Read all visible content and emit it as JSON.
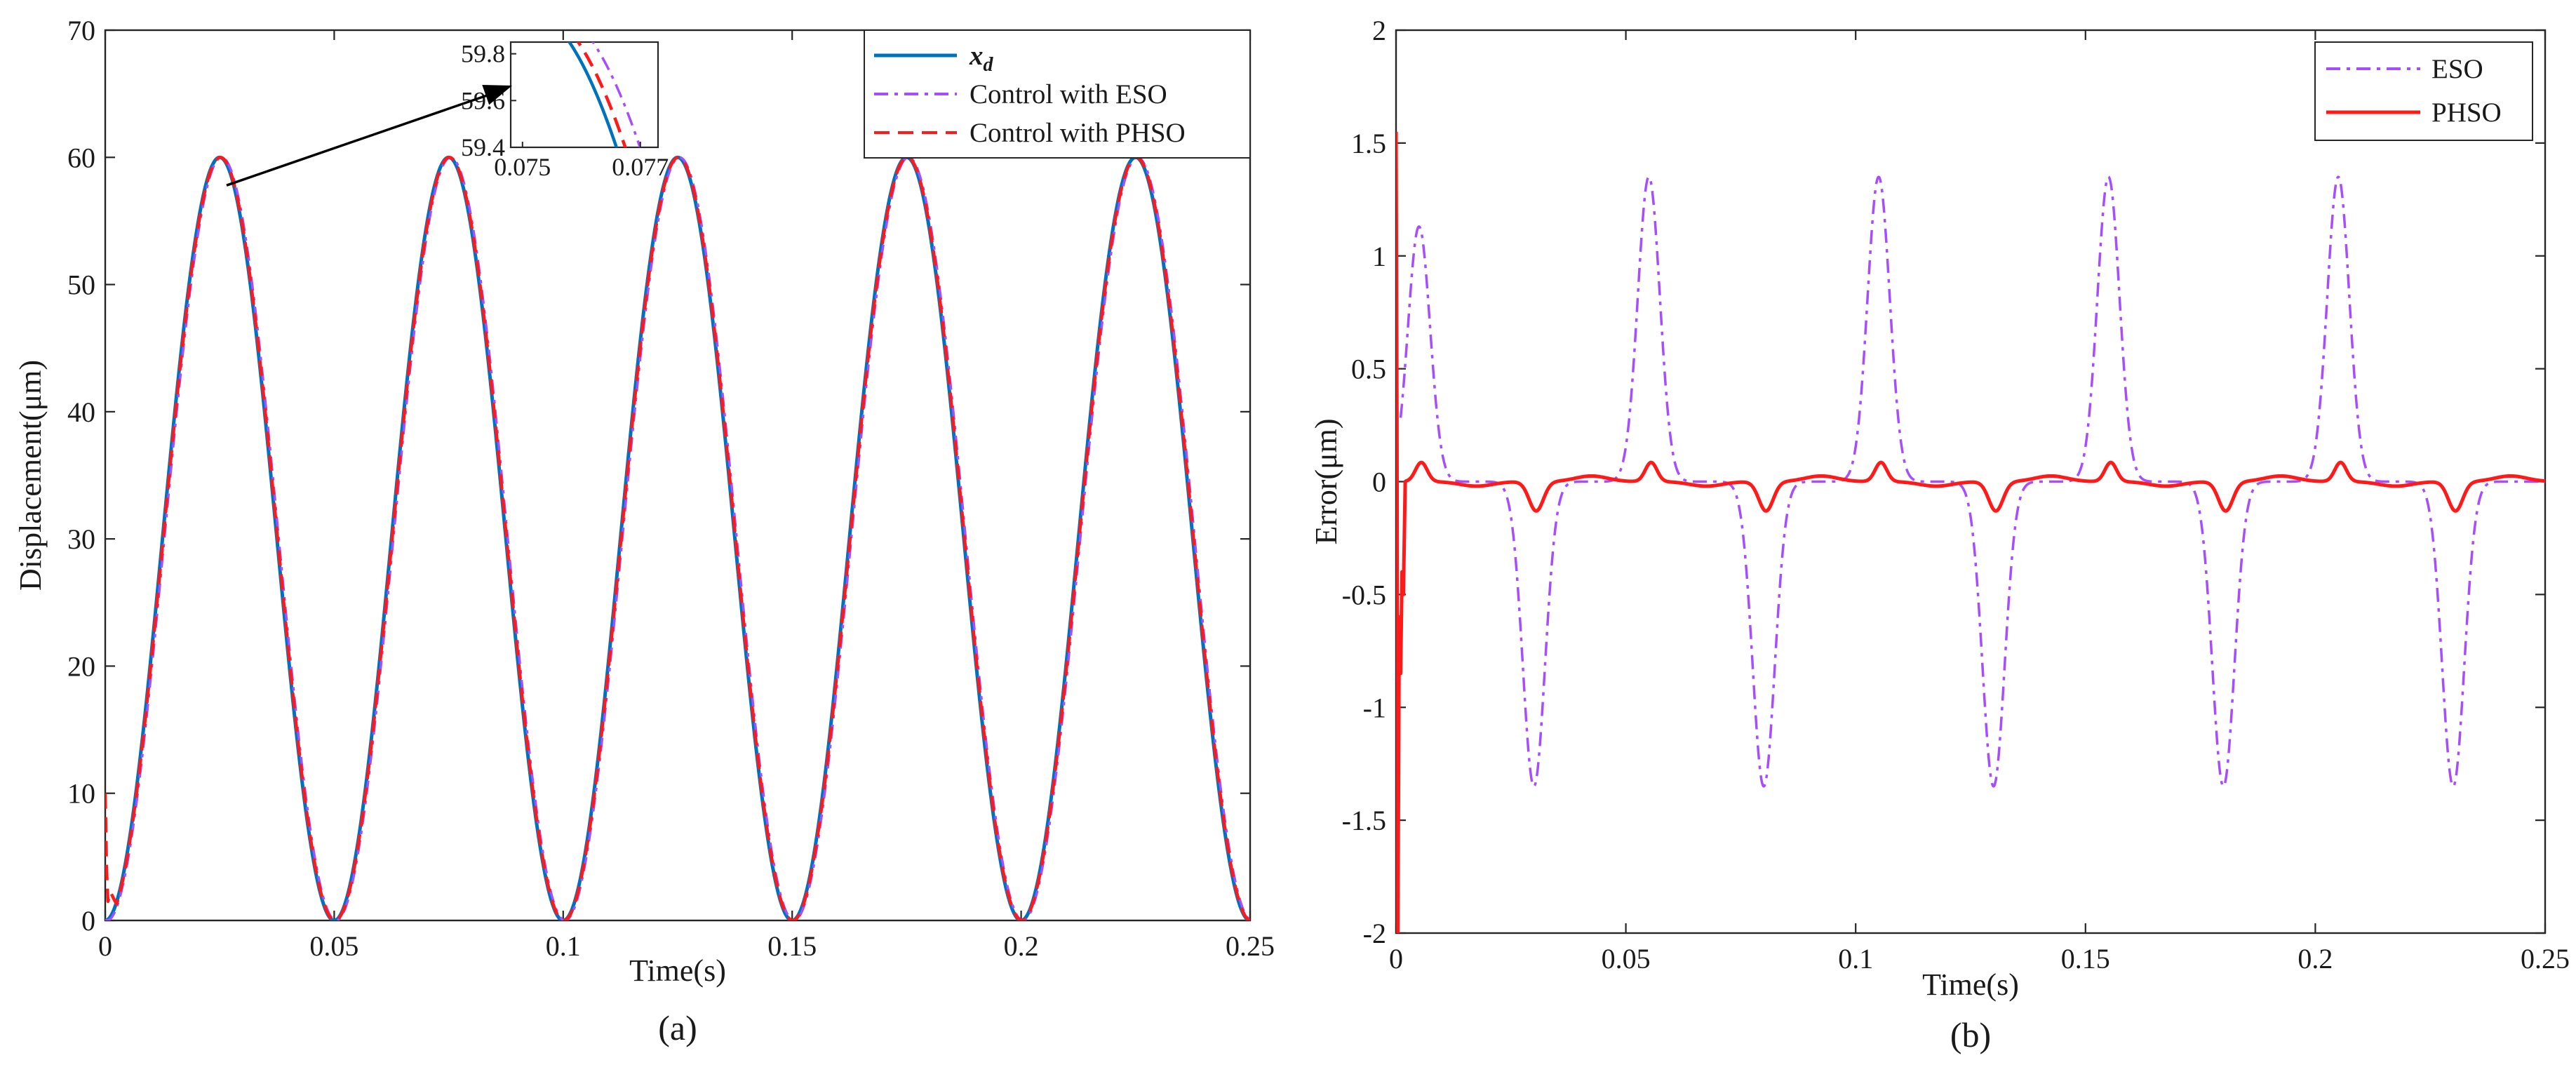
{
  "colors": {
    "xd": "#0072BD",
    "eso": "#A64DFF",
    "phso": "#FF1A1A",
    "axes": "#262626",
    "background": "#ffffff"
  },
  "chart_data": [
    {
      "type": "line",
      "caption": "(a)",
      "xlabel": "Time(s)",
      "ylabel": "Displacement(μm)",
      "xlim": [
        0,
        0.25
      ],
      "ylim": [
        0,
        70
      ],
      "xticks": [
        "0",
        "0.05",
        "0.1",
        "0.15",
        "0.2",
        "0.25"
      ],
      "yticks": [
        "0",
        "10",
        "20",
        "30",
        "40",
        "50",
        "60",
        "70"
      ],
      "legend_position": "top-right",
      "grid": false,
      "series": [
        {
          "name": "x_d",
          "legend_text": "x",
          "legend_sub": "d",
          "color": "#0072BD",
          "style": "solid",
          "description": "30 - 30*cos(2*pi*20*t)",
          "x": [
            0,
            0.025,
            0.05,
            0.075,
            0.1,
            0.125,
            0.15,
            0.175,
            0.2,
            0.225,
            0.25
          ],
          "y": [
            0,
            60,
            0,
            60,
            0,
            60,
            0,
            60,
            0,
            60,
            0
          ]
        },
        {
          "name": "Control with ESO",
          "color": "#A64DFF",
          "style": "dashdot",
          "x": [
            0,
            0.025,
            0.05,
            0.075,
            0.1,
            0.125,
            0.15,
            0.175,
            0.2,
            0.225,
            0.25
          ],
          "y": [
            0,
            60,
            0,
            60,
            0,
            60,
            0,
            60,
            0,
            60,
            0
          ]
        },
        {
          "name": "Control with PHSO",
          "color": "#FF1A1A",
          "style": "dashed",
          "x": [
            0,
            0.001,
            0.025,
            0.05,
            0.075,
            0.1,
            0.125,
            0.15,
            0.175,
            0.2,
            0.225,
            0.25
          ],
          "y": [
            10,
            1.5,
            60,
            0,
            60,
            0,
            60,
            0,
            60,
            0,
            60,
            0
          ]
        }
      ],
      "inset": {
        "xlim": [
          0.0748,
          0.0773
        ],
        "ylim": [
          59.4,
          59.85
        ],
        "xticks": [
          "0.075",
          "0.077"
        ],
        "yticks": [
          "59.4",
          "59.6",
          "59.8"
        ],
        "arrow_from": {
          "x": 0.0265,
          "y": 57.8
        }
      }
    },
    {
      "type": "line",
      "caption": "(b)",
      "xlabel": "Time(s)",
      "ylabel": "Error(μm)",
      "xlim": [
        0,
        0.25
      ],
      "ylim": [
        -2,
        2
      ],
      "xticks": [
        "0",
        "0.05",
        "0.1",
        "0.15",
        "0.2",
        "0.25"
      ],
      "yticks": [
        "-2",
        "-1.5",
        "-1",
        "-0.5",
        "0",
        "0.5",
        "1",
        "1.5",
        "2"
      ],
      "legend_position": "top-right",
      "grid": false,
      "series": [
        {
          "name": "ESO",
          "color": "#A64DFF",
          "style": "dashdot",
          "x": [
            0.005,
            0.03,
            0.055,
            0.08,
            0.105,
            0.13,
            0.155,
            0.18,
            0.205,
            0.23
          ],
          "y": [
            1.13,
            -1.35,
            1.35,
            -1.35,
            1.35,
            -1.35,
            1.35,
            -1.35,
            1.35,
            -1.35
          ]
        },
        {
          "name": "PHSO",
          "color": "#FF1A1A",
          "style": "solid",
          "x": [
            0,
            0.0005,
            0.002,
            0.0055,
            0.03,
            0.055,
            0.08,
            0.105,
            0.13,
            0.155,
            0.18,
            0.205,
            0.23
          ],
          "y": [
            1.55,
            -2,
            0.07,
            0.06,
            -0.13,
            0.13,
            -0.13,
            0.13,
            -0.13,
            0.13,
            -0.13,
            0.13,
            -0.13
          ]
        }
      ]
    }
  ]
}
